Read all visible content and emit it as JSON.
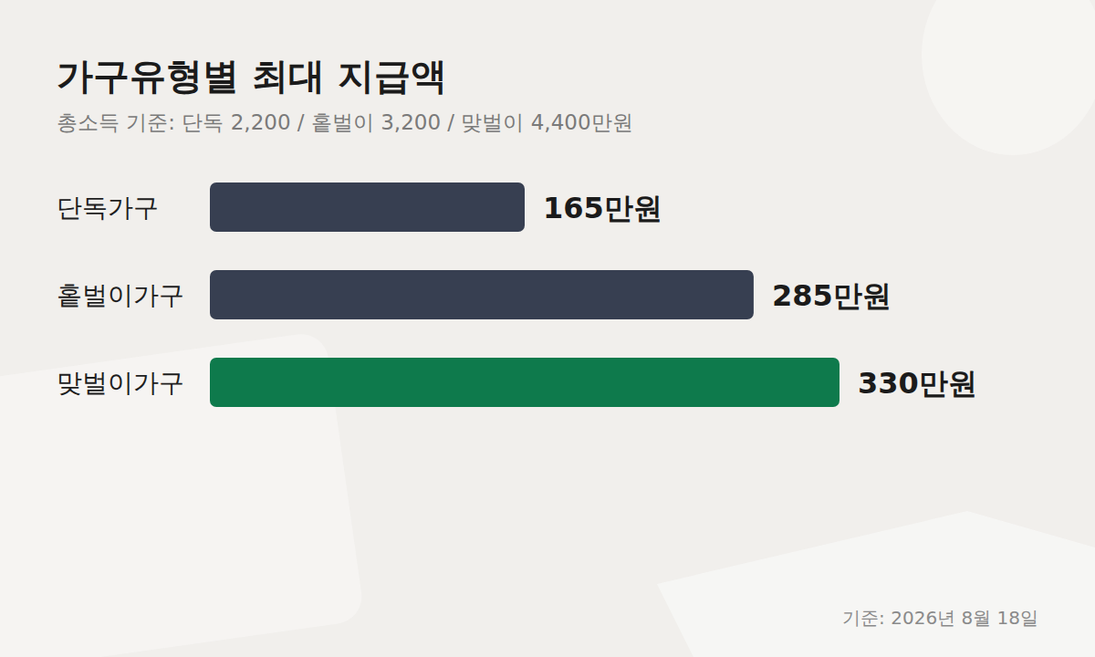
{
  "chart_data": {
    "type": "bar",
    "orientation": "horizontal",
    "title": "가구유형별 최대 지급액",
    "subtitle": "총소득 기준: 단독 2,200 / 홑벌이 3,200 / 맞벌이 4,400만원",
    "annotations": [
      "기준: 2026년 8월 18일"
    ],
    "categories": [
      "단독가구",
      "홑벌이가구",
      "맞벌이가구"
    ],
    "values": [
      165,
      285,
      330
    ],
    "value_labels": [
      "165만원",
      "285만원",
      "330만원"
    ],
    "colors": [
      "#373f51",
      "#373f51",
      "#0e7a4c"
    ],
    "xlim": [
      0,
      330
    ],
    "data_labels": true,
    "tick_labels": false,
    "grid": false
  }
}
